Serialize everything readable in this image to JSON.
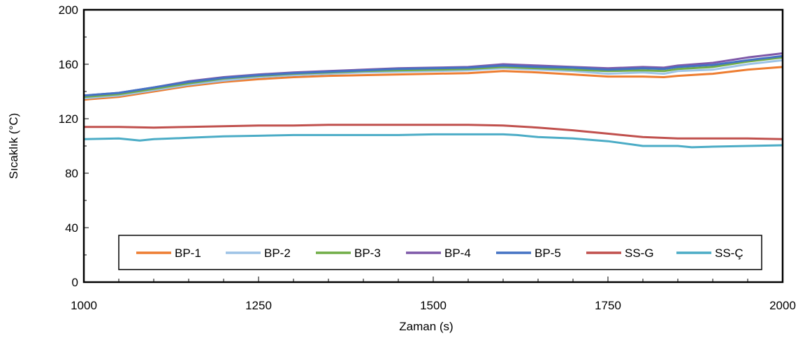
{
  "chart_data": {
    "type": "line",
    "xlabel": "Zaman (s)",
    "ylabel": "Sıcaklık (°C)",
    "xlim": [
      1000,
      2000
    ],
    "ylim": [
      0,
      200
    ],
    "xticks": [
      1000,
      1250,
      1500,
      1750,
      2000
    ],
    "yticks": [
      0,
      40,
      80,
      120,
      160,
      200
    ],
    "grid": false,
    "legend_position": "bottom-inside",
    "series": [
      {
        "name": "BP-1",
        "color": "#ED7D31",
        "x": [
          1000,
          1050,
          1100,
          1150,
          1200,
          1250,
          1300,
          1350,
          1400,
          1450,
          1500,
          1550,
          1600,
          1650,
          1700,
          1750,
          1800,
          1830,
          1850,
          1900,
          1950,
          2000
        ],
        "y": [
          134,
          136,
          140,
          144,
          147,
          149,
          150.5,
          151.5,
          152,
          152.5,
          153,
          153.5,
          155,
          154,
          152.5,
          151,
          151,
          150.5,
          151.5,
          153,
          156,
          158
        ]
      },
      {
        "name": "BP-2",
        "color": "#9DC3E6",
        "x": [
          1000,
          1050,
          1100,
          1150,
          1200,
          1250,
          1300,
          1350,
          1400,
          1450,
          1500,
          1550,
          1600,
          1650,
          1700,
          1750,
          1800,
          1830,
          1850,
          1900,
          1950,
          2000
        ],
        "y": [
          135,
          137,
          141,
          145,
          148,
          150.5,
          152,
          153,
          154,
          154.5,
          155,
          155.5,
          157,
          156,
          155,
          153,
          154,
          153,
          155,
          156,
          160,
          163
        ]
      },
      {
        "name": "BP-3",
        "color": "#70AD47",
        "x": [
          1000,
          1050,
          1100,
          1150,
          1200,
          1250,
          1300,
          1350,
          1400,
          1450,
          1500,
          1550,
          1600,
          1650,
          1700,
          1750,
          1800,
          1830,
          1850,
          1900,
          1950,
          2000
        ],
        "y": [
          136,
          138,
          142,
          146,
          149.5,
          151.5,
          153,
          154,
          155,
          155.5,
          156,
          156.5,
          158,
          157,
          156,
          155,
          155.5,
          155,
          156.5,
          158,
          162,
          165
        ]
      },
      {
        "name": "BP-4",
        "color": "#7E58A8",
        "x": [
          1000,
          1050,
          1100,
          1150,
          1200,
          1250,
          1300,
          1350,
          1400,
          1450,
          1500,
          1550,
          1600,
          1650,
          1700,
          1750,
          1800,
          1830,
          1850,
          1900,
          1950,
          2000
        ],
        "y": [
          137,
          139,
          143,
          147.5,
          150.5,
          152.5,
          154,
          155,
          156,
          157,
          157.5,
          158,
          160,
          159,
          158,
          157,
          158,
          157.5,
          159,
          161,
          165,
          168
        ]
      },
      {
        "name": "BP-5",
        "color": "#4472C4",
        "x": [
          1000,
          1050,
          1100,
          1150,
          1200,
          1250,
          1300,
          1350,
          1400,
          1450,
          1500,
          1550,
          1600,
          1650,
          1700,
          1750,
          1800,
          1830,
          1850,
          1900,
          1950,
          2000
        ],
        "y": [
          137,
          139,
          143,
          147,
          150,
          152,
          153.5,
          154.5,
          155.5,
          156.5,
          157,
          157.5,
          159,
          158,
          157.5,
          156,
          157,
          156.5,
          158,
          159.5,
          163,
          166
        ]
      },
      {
        "name": "SS-G",
        "color": "#C0504D",
        "x": [
          1000,
          1050,
          1100,
          1150,
          1200,
          1250,
          1300,
          1350,
          1400,
          1450,
          1500,
          1550,
          1600,
          1650,
          1700,
          1750,
          1800,
          1850,
          1900,
          1950,
          2000
        ],
        "y": [
          114,
          114,
          113.5,
          114,
          114.5,
          115,
          115,
          115.5,
          115.5,
          115.5,
          115.5,
          115.5,
          115,
          113.5,
          111.5,
          109,
          106.5,
          105.5,
          105.5,
          105.5,
          105
        ]
      },
      {
        "name": "SS-Ç",
        "color": "#4BACC6",
        "x": [
          1000,
          1050,
          1080,
          1100,
          1150,
          1200,
          1250,
          1300,
          1350,
          1400,
          1450,
          1500,
          1550,
          1600,
          1620,
          1650,
          1700,
          1750,
          1800,
          1850,
          1870,
          1900,
          1950,
          2000
        ],
        "y": [
          105,
          105.5,
          104,
          105,
          106,
          107,
          107.5,
          108,
          108,
          108,
          108,
          108.5,
          108.5,
          108.5,
          108,
          106.5,
          105.5,
          103.5,
          100,
          100,
          99,
          99.5,
          100,
          100.5
        ]
      }
    ]
  }
}
